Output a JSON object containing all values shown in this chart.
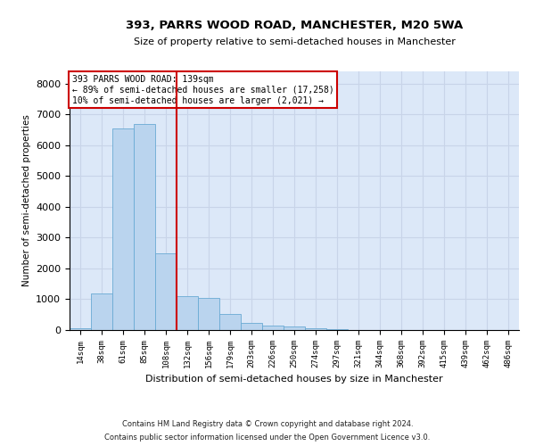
{
  "title": "393, PARRS WOOD ROAD, MANCHESTER, M20 5WA",
  "subtitle": "Size of property relative to semi-detached houses in Manchester",
  "xlabel": "Distribution of semi-detached houses by size in Manchester",
  "ylabel": "Number of semi-detached properties",
  "footnote1": "Contains HM Land Registry data © Crown copyright and database right 2024.",
  "footnote2": "Contains public sector information licensed under the Open Government Licence v3.0.",
  "annotation_title": "393 PARRS WOOD ROAD: 139sqm",
  "annotation_line1": "← 89% of semi-detached houses are smaller (17,258)",
  "annotation_line2": "10% of semi-detached houses are larger (2,021) →",
  "vline_x": 4.5,
  "bar_color": "#bad4ee",
  "bar_edge_color": "#6aaad4",
  "vline_color": "#cc0000",
  "annotation_box_edgecolor": "#cc0000",
  "categories": [
    "14sqm",
    "38sqm",
    "61sqm",
    "85sqm",
    "108sqm",
    "132sqm",
    "156sqm",
    "179sqm",
    "203sqm",
    "226sqm",
    "250sqm",
    "274sqm",
    "297sqm",
    "321sqm",
    "344sqm",
    "368sqm",
    "392sqm",
    "415sqm",
    "439sqm",
    "462sqm",
    "486sqm"
  ],
  "values": [
    55,
    1200,
    6550,
    6700,
    2500,
    1100,
    1050,
    520,
    220,
    150,
    110,
    50,
    30,
    0,
    0,
    0,
    0,
    0,
    0,
    0,
    0
  ],
  "ylim": [
    0,
    8400
  ],
  "yticks": [
    0,
    1000,
    2000,
    3000,
    4000,
    5000,
    6000,
    7000,
    8000
  ],
  "grid_color": "#c8d4e8",
  "background_color": "#dce8f8"
}
